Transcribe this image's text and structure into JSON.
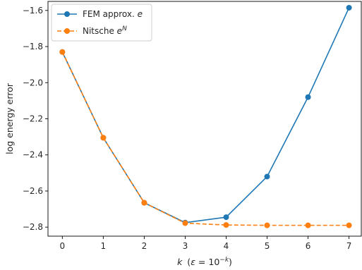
{
  "chart_data": {
    "type": "line",
    "xlabel_main": "k",
    "xlabel_paren": "(ε = 10",
    "xlabel_sup": "−k",
    "xlabel_close": ")",
    "ylabel": "log energy error",
    "x": [
      0,
      1,
      2,
      3,
      4,
      5,
      6,
      7
    ],
    "xlim": [
      -0.35,
      7.3
    ],
    "ylim": [
      -2.85,
      -1.55
    ],
    "xticks": [
      "0",
      "1",
      "2",
      "3",
      "4",
      "5",
      "6",
      "7"
    ],
    "yticks": [
      {
        "value": -1.6,
        "label": "−1.6"
      },
      {
        "value": -1.8,
        "label": "−1.8"
      },
      {
        "value": -2.0,
        "label": "−2.0"
      },
      {
        "value": -2.2,
        "label": "−2.2"
      },
      {
        "value": -2.4,
        "label": "−2.4"
      },
      {
        "value": -2.6,
        "label": "−2.6"
      },
      {
        "value": -2.8,
        "label": "−2.8"
      }
    ],
    "legend_position": "top-left",
    "grid": false,
    "series": [
      {
        "name_prefix": "FEM approx. ",
        "name_var": "e",
        "name_sup": "",
        "color": "#1f77b4",
        "style": "solid",
        "values": [
          -1.83,
          -2.305,
          -2.665,
          -2.775,
          -2.745,
          -2.52,
          -2.08,
          -1.585
        ]
      },
      {
        "name_prefix": "Nitsche ",
        "name_var": "e",
        "name_sup": "N",
        "color": "#ff7f0e",
        "style": "dashed",
        "values": [
          -1.83,
          -2.305,
          -2.665,
          -2.778,
          -2.788,
          -2.79,
          -2.79,
          -2.79
        ]
      }
    ]
  }
}
